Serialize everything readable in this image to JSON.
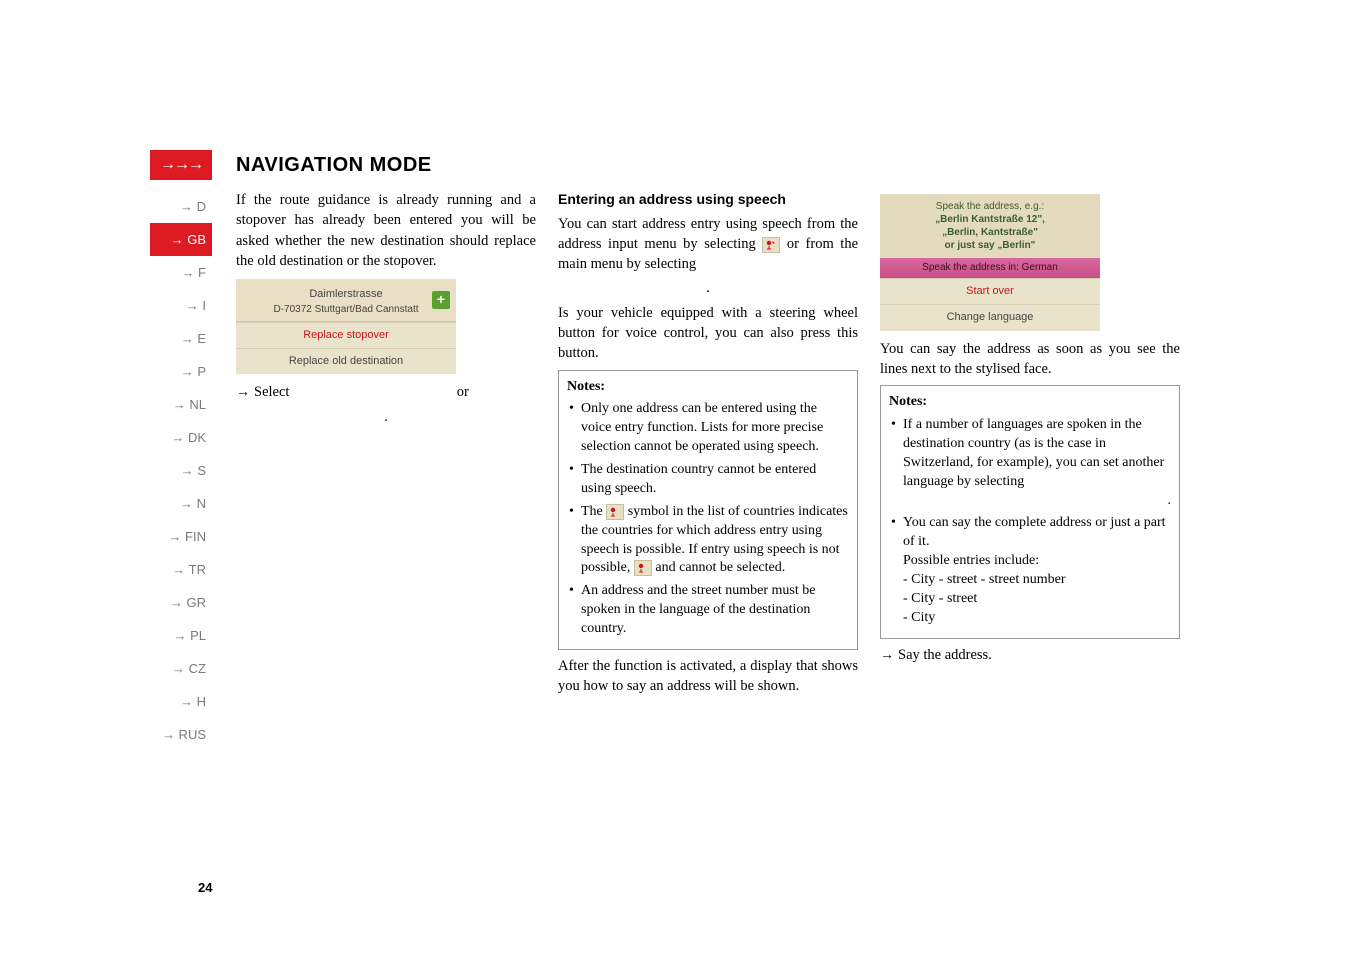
{
  "header": {
    "arrows": "→→→",
    "title": "NAVIGATION MODE"
  },
  "sidebar": {
    "items": [
      {
        "label": "→ D",
        "active": false
      },
      {
        "label": "→ GB",
        "active": true
      },
      {
        "label": "→ F",
        "active": false
      },
      {
        "label": "→ I",
        "active": false
      },
      {
        "label": "→ E",
        "active": false
      },
      {
        "label": "→ P",
        "active": false
      },
      {
        "label": "→ NL",
        "active": false
      },
      {
        "label": "→ DK",
        "active": false
      },
      {
        "label": "→ S",
        "active": false
      },
      {
        "label": "→ N",
        "active": false
      },
      {
        "label": "→ FIN",
        "active": false
      },
      {
        "label": "→ TR",
        "active": false
      },
      {
        "label": "→ GR",
        "active": false
      },
      {
        "label": "→ PL",
        "active": false
      },
      {
        "label": "→ CZ",
        "active": false
      },
      {
        "label": "→ H",
        "active": false
      },
      {
        "label": "→ RUS",
        "active": false
      }
    ]
  },
  "col1": {
    "intro": "If the route guidance is already running and a stopover has already been entered you will be asked whether the new destination should replace the old destination or the stopover.",
    "screenshot": {
      "addr1": "Daimlerstrasse",
      "addr2": "D-70372 Stuttgart/Bad Cannstatt",
      "plus": "+",
      "row1": "Replace stopover",
      "row2": "Replace old destination"
    },
    "select_pre": "Select",
    "select_post": "or",
    "select_end": "."
  },
  "col2": {
    "heading": "Entering an address using speech",
    "p1a": "You can start address entry using speech from the address input menu by selecting ",
    "p1b": " or from the main menu by selecting",
    "p1c": ".",
    "p2": "Is your vehicle equipped with a steering wheel button for voice control, you can also press this button.",
    "notes": {
      "title": "Notes:",
      "items": [
        "Only one address can be entered using the voice entry function. Lists for more precise selection cannot be operated using speech.",
        "The destination country cannot be entered using speech."
      ],
      "item3a": "The ",
      "item3b": " symbol in the list of countries indicates the countries for which address entry using speech is possible. If entry using speech is not possible, ",
      "item3c": " and        cannot be selected.",
      "item4": "An address and the street number must be spoken in the language of the destination country."
    },
    "after": "After the function is activated, a display that shows you how to say an address will be shown."
  },
  "col3": {
    "screenshot": {
      "l1": "Speak the address, e.g.:",
      "l2": "„Berlin Kantstraße 12\",",
      "l3": "„Berlin, Kantstraße\"",
      "l4": "or just say „Berlin\"",
      "lang": "Speak the address in: German",
      "row1": "Start over",
      "row2": "Change language"
    },
    "p1": "You can say the address as soon as you see the lines next to the stylised face.",
    "notes": {
      "title": "Notes:",
      "item1": "If a number of languages are spoken in the destination country (as is the case in Switzerland, for example), you can set another language by selecting",
      "item1end": ".",
      "item2": "You can say the complete address or just a part of it.",
      "item2b": "Possible entries include:",
      "sub1": "- City - street - street number",
      "sub2": "- City - street",
      "sub3": "- City"
    },
    "say": "Say the address."
  },
  "page_number": "24",
  "colors": {
    "brand_red": "#dc1b23",
    "panel_bg": "#e8dfc5",
    "panel_row": "#eae3cc",
    "panel_border": "#d8cfb3",
    "pink_bar": "#d9679e",
    "sidebar_text": "#7a7a7a",
    "note_border": "#999999"
  }
}
